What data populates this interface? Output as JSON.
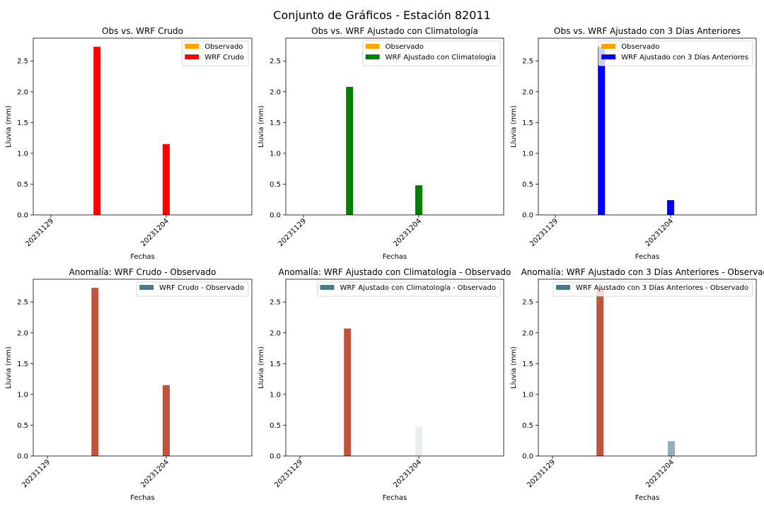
{
  "suptitle": "Conjunto de Gráficos - Estación 82011",
  "chart_data": [
    {
      "type": "bar",
      "title": "Obs vs. WRF Crudo",
      "xlabel": "Fechas",
      "ylabel": "Lluvia (mm)",
      "xticks": [
        "20231129",
        "20231204"
      ],
      "yticks": [
        "0.0",
        "0.5",
        "1.0",
        "1.5",
        "2.0",
        "2.5"
      ],
      "ylim": [
        0,
        2.87
      ],
      "legend_position": "top-right",
      "series": [
        {
          "name": "Observado",
          "color": "#ffa500",
          "x": [
            "20231201",
            "20231204"
          ],
          "values": [
            0,
            0
          ]
        },
        {
          "name": "WRF Crudo",
          "color": "#ff0000",
          "x": [
            "20231201",
            "20231204"
          ],
          "values": [
            2.73,
            1.15
          ]
        }
      ]
    },
    {
      "type": "bar",
      "title": "Obs vs. WRF Ajustado con Climatología",
      "xlabel": "Fechas",
      "ylabel": "Lluvia (mm)",
      "xticks": [
        "20231129",
        "20231204"
      ],
      "yticks": [
        "0.0",
        "0.5",
        "1.0",
        "1.5",
        "2.0",
        "2.5"
      ],
      "ylim": [
        0,
        2.87
      ],
      "legend_position": "top-right",
      "series": [
        {
          "name": "Observado",
          "color": "#ffa500",
          "x": [
            "20231201",
            "20231204"
          ],
          "values": [
            0,
            0
          ]
        },
        {
          "name": "WRF Ajustado con Climatología",
          "color": "#008000",
          "x": [
            "20231201",
            "20231204"
          ],
          "values": [
            2.08,
            0.48
          ]
        }
      ]
    },
    {
      "type": "bar",
      "title": "Obs vs. WRF Ajustado con 3 Días Anteriores",
      "xlabel": "Fechas",
      "ylabel": "Lluvia (mm)",
      "xticks": [
        "20231129",
        "20231204"
      ],
      "yticks": [
        "0.0",
        "0.5",
        "1.0",
        "1.5",
        "2.0",
        "2.5"
      ],
      "ylim": [
        0,
        2.87
      ],
      "legend_position": "top-right",
      "series": [
        {
          "name": "Observado",
          "color": "#ffa500",
          "x": [
            "20231201",
            "20231204"
          ],
          "values": [
            0,
            0
          ]
        },
        {
          "name": "WRF Ajustado con 3 Días Anteriores",
          "color": "#0000ff",
          "x": [
            "20231201",
            "20231204"
          ],
          "values": [
            2.73,
            0.24
          ]
        }
      ]
    },
    {
      "type": "bar",
      "title": "Anomalía: WRF Crudo - Observado",
      "xlabel": "Fechas",
      "ylabel": "Lluvia (mm)",
      "xticks": [
        "20231129",
        "20231204"
      ],
      "yticks": [
        "0.0",
        "0.5",
        "1.0",
        "1.5",
        "2.0",
        "2.5"
      ],
      "ylim": [
        0,
        2.87
      ],
      "legend_position": "top-right",
      "legend_entries": [
        {
          "name": "WRF Crudo - Observado",
          "color": "#437c8c"
        }
      ],
      "series": [
        {
          "name": "WRF Crudo - Observado",
          "x": [
            "20231201",
            "20231204"
          ],
          "values": [
            2.73,
            1.15
          ],
          "colors": [
            "#c0533a",
            "#c0533a"
          ]
        }
      ]
    },
    {
      "type": "bar",
      "title": "Anomalía: WRF Ajustado con Climatología - Observado",
      "xlabel": "Fechas",
      "ylabel": "Lluvia (mm)",
      "xticks": [
        "20231129",
        "20231204"
      ],
      "yticks": [
        "0.0",
        "0.5",
        "1.0",
        "1.5",
        "2.0",
        "2.5"
      ],
      "ylim": [
        0,
        2.87
      ],
      "legend_position": "top-right",
      "legend_entries": [
        {
          "name": "WRF Ajustado con Climatología - Observado",
          "color": "#437c8c"
        }
      ],
      "series": [
        {
          "name": "WRF Ajustado con Climatología - Observado",
          "x": [
            "20231201",
            "20231204"
          ],
          "values": [
            2.07,
            0.48
          ],
          "colors": [
            "#c0533a",
            "#e8edf1"
          ]
        }
      ]
    },
    {
      "type": "bar",
      "title": "Anomalía: WRF Ajustado con 3 Días Anteriores - Observado",
      "xlabel": "Fechas",
      "ylabel": "Lluvia (mm)",
      "xticks": [
        "20231129",
        "20231204"
      ],
      "yticks": [
        "0.0",
        "0.5",
        "1.0",
        "1.5",
        "2.0",
        "2.5"
      ],
      "ylim": [
        0,
        2.87
      ],
      "legend_position": "top-right",
      "legend_entries": [
        {
          "name": "WRF Ajustado con 3 Días Anteriores - Observado",
          "color": "#437c8c"
        }
      ],
      "series": [
        {
          "name": "WRF Ajustado con 3 Días Anteriores - Observado",
          "x": [
            "20231201",
            "20231204"
          ],
          "values": [
            2.73,
            0.24
          ],
          "colors": [
            "#c0533a",
            "#91b1b9"
          ]
        }
      ]
    }
  ]
}
